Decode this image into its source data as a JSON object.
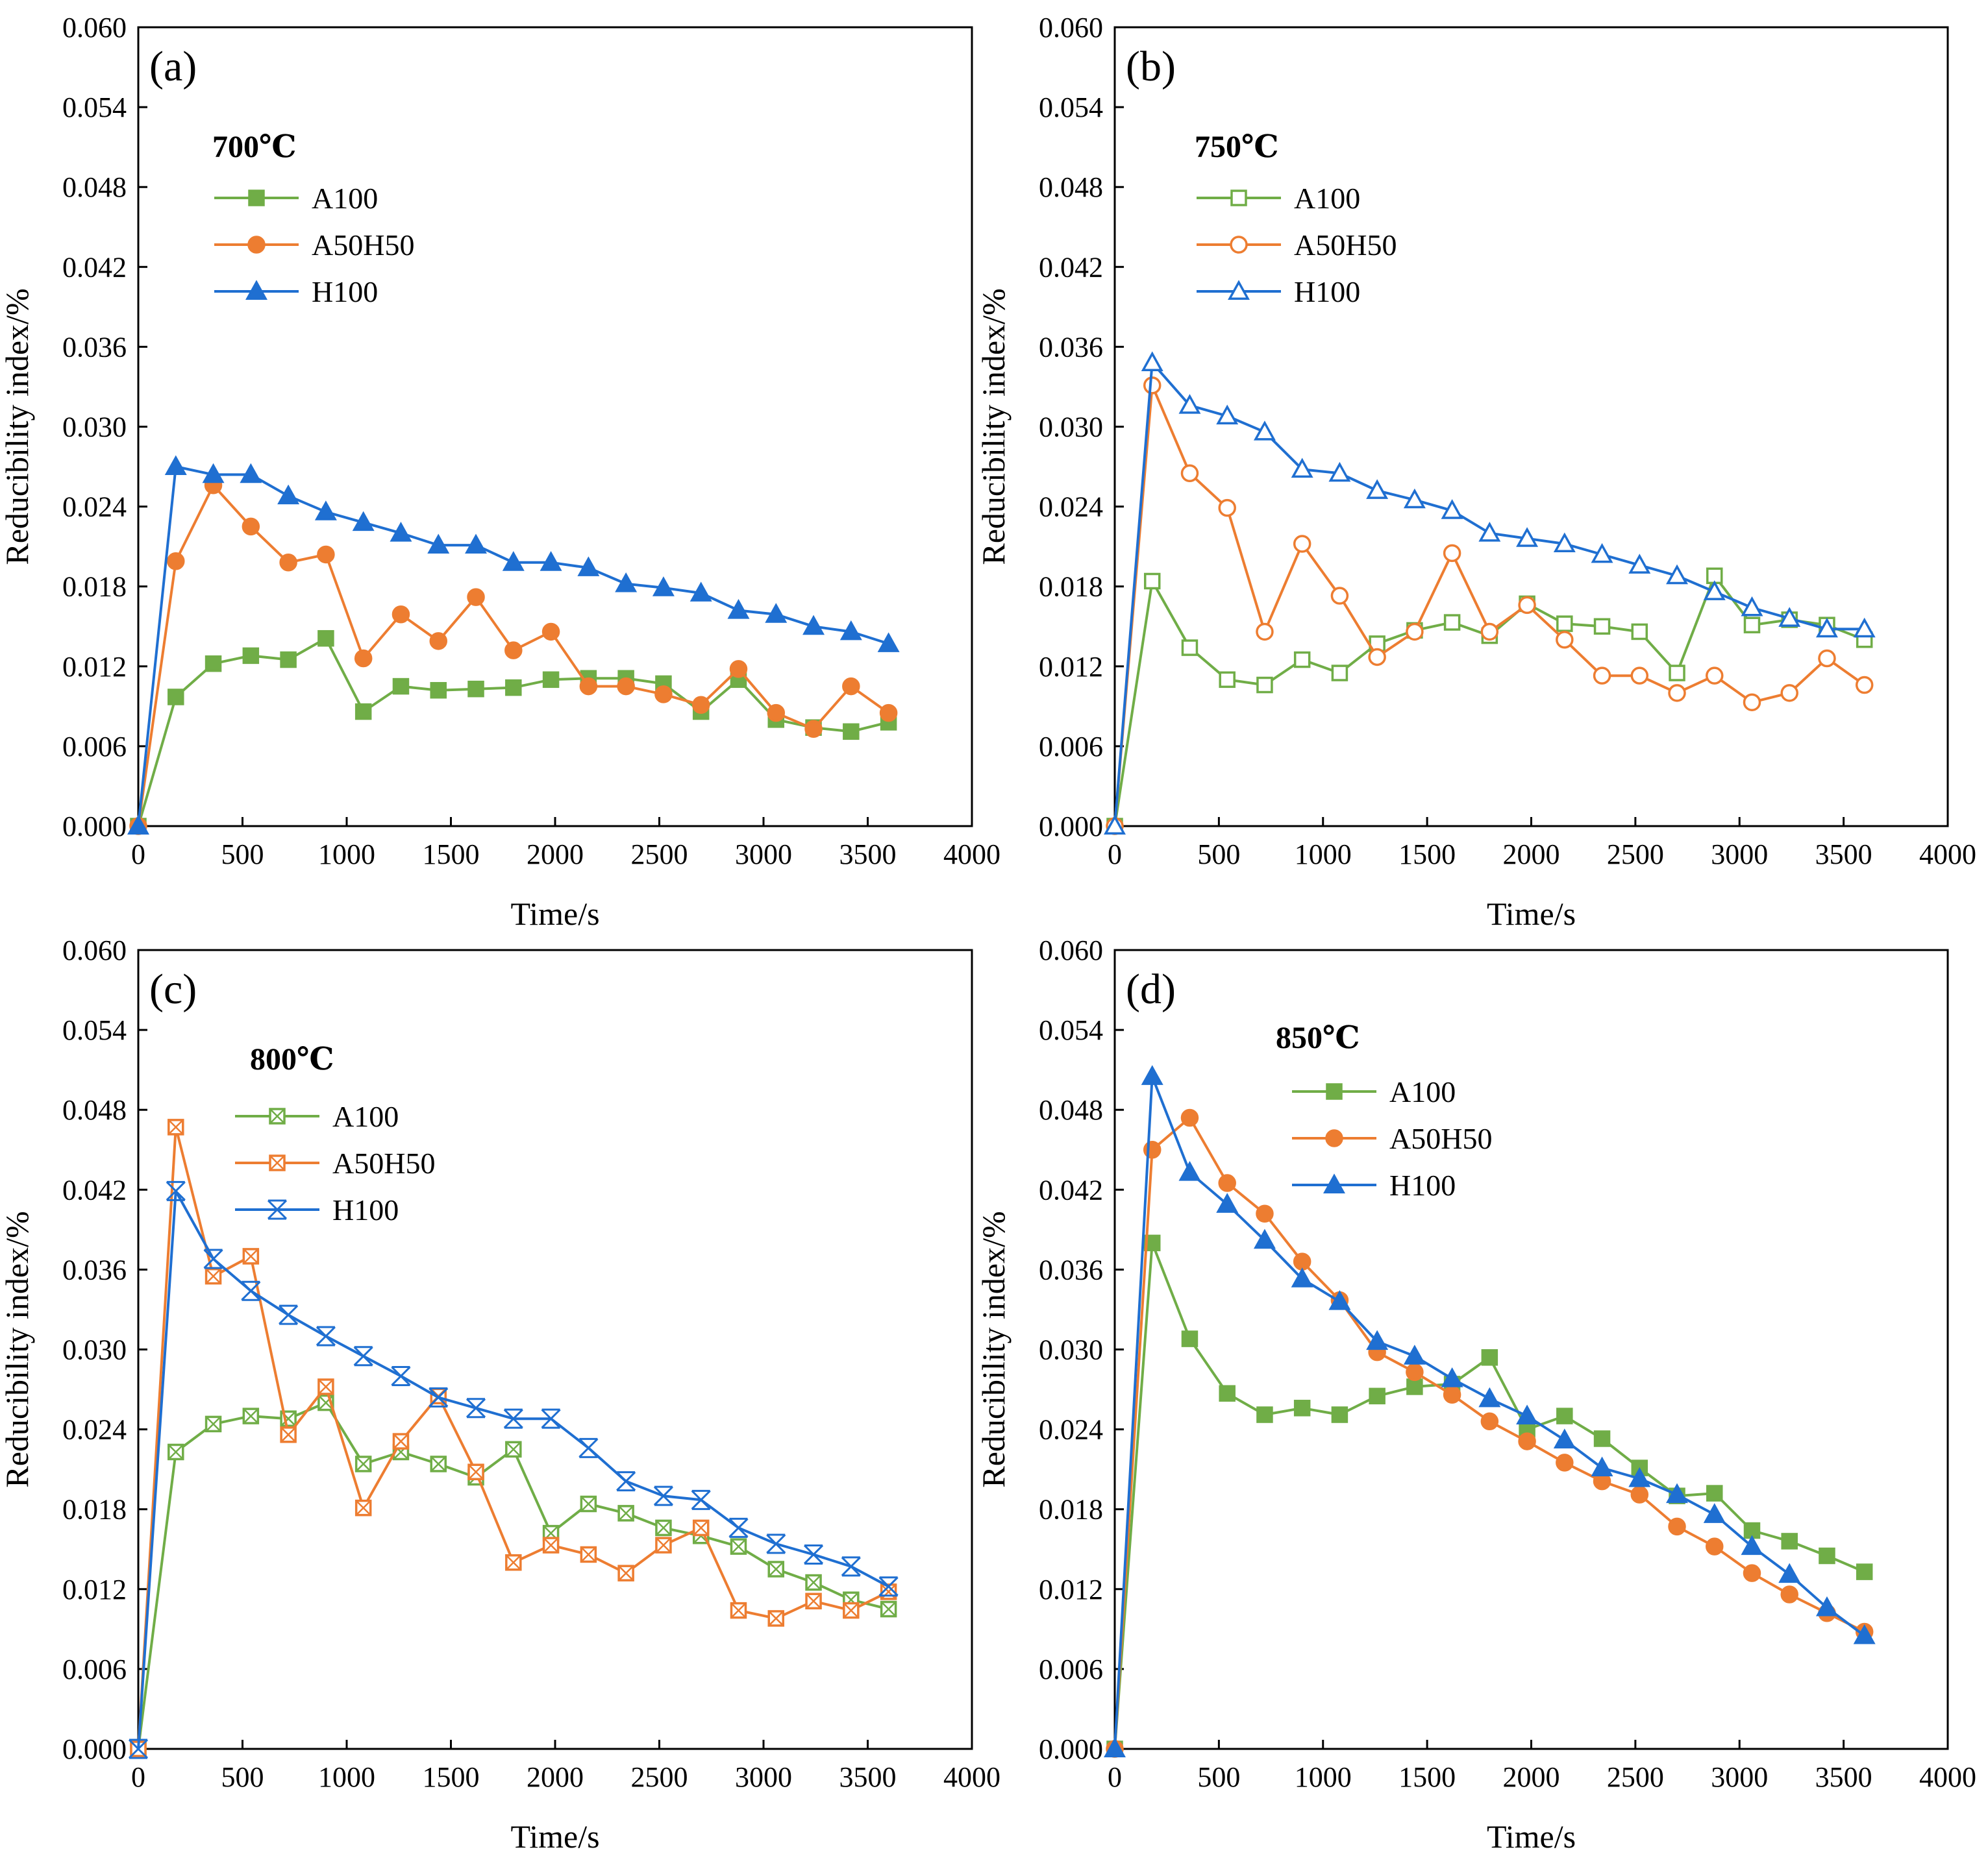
{
  "chart_data": [
    {
      "type": "line",
      "panel_label": "(a)",
      "temperature_label": "700℃",
      "xlabel": "Time/s",
      "ylabel": "Reducibility index/%",
      "xlim": [
        0,
        4000
      ],
      "ylim": [
        0,
        0.06
      ],
      "xticks": [
        "0",
        "500",
        "1000",
        "1500",
        "2000",
        "2500",
        "3000",
        "3500",
        "4000"
      ],
      "yticks": [
        "0.000",
        "0.006",
        "0.012",
        "0.018",
        "0.024",
        "0.030",
        "0.036",
        "0.042",
        "0.048",
        "0.054",
        "0.060"
      ],
      "marker_style": "filled",
      "x": [
        0,
        180,
        360,
        540,
        720,
        900,
        1080,
        1260,
        1440,
        1620,
        1800,
        1980,
        2160,
        2340,
        2520,
        2700,
        2880,
        3060,
        3240,
        3420,
        3600
      ],
      "series": [
        {
          "name": "A100",
          "color": "#70ad47",
          "marker": "square",
          "values": [
            0.0,
            0.0097,
            0.0122,
            0.0128,
            0.0125,
            0.0141,
            0.0086,
            0.0105,
            0.0102,
            0.0103,
            0.0104,
            0.011,
            0.0111,
            0.0111,
            0.0107,
            0.0086,
            0.011,
            0.008,
            0.0074,
            0.0071,
            0.0078
          ]
        },
        {
          "name": "A50H50",
          "color": "#ed7d31",
          "marker": "circle",
          "values": [
            0.0,
            0.0199,
            0.0256,
            0.0225,
            0.0198,
            0.0204,
            0.0126,
            0.0159,
            0.0139,
            0.0172,
            0.0132,
            0.0146,
            0.0105,
            0.0105,
            0.0099,
            0.0091,
            0.0118,
            0.0085,
            0.0073,
            0.0105,
            0.0085
          ]
        },
        {
          "name": "H100",
          "color": "#1f6fd1",
          "marker": "triangle",
          "values": [
            0.0,
            0.027,
            0.0264,
            0.0264,
            0.0248,
            0.0236,
            0.0228,
            0.022,
            0.0211,
            0.0211,
            0.0198,
            0.0198,
            0.0194,
            0.0182,
            0.0179,
            0.0175,
            0.0162,
            0.0159,
            0.015,
            0.0146,
            0.0137
          ]
        }
      ]
    },
    {
      "type": "line",
      "panel_label": "(b)",
      "temperature_label": "750℃",
      "xlabel": "Time/s",
      "ylabel": "Reducibility index/%",
      "xlim": [
        0,
        4000
      ],
      "ylim": [
        0,
        0.06
      ],
      "xticks": [
        "0",
        "500",
        "1000",
        "1500",
        "2000",
        "2500",
        "3000",
        "3500",
        "4000"
      ],
      "yticks": [
        "0.000",
        "0.006",
        "0.012",
        "0.018",
        "0.024",
        "0.030",
        "0.036",
        "0.042",
        "0.048",
        "0.054",
        "0.060"
      ],
      "marker_style": "hollow",
      "x": [
        0,
        180,
        360,
        540,
        720,
        900,
        1080,
        1260,
        1440,
        1620,
        1800,
        1980,
        2160,
        2340,
        2520,
        2700,
        2880,
        3060,
        3240,
        3420,
        3600
      ],
      "series": [
        {
          "name": "A100",
          "color": "#70ad47",
          "marker": "square",
          "values": [
            0.0,
            0.0184,
            0.0134,
            0.011,
            0.0106,
            0.0125,
            0.0115,
            0.0137,
            0.0147,
            0.0153,
            0.0143,
            0.0167,
            0.0152,
            0.015,
            0.0146,
            0.0115,
            0.0188,
            0.0151,
            0.0155,
            0.0151,
            0.014
          ]
        },
        {
          "name": "A50H50",
          "color": "#ed7d31",
          "marker": "circle",
          "values": [
            0.0,
            0.0331,
            0.0265,
            0.0239,
            0.0146,
            0.0212,
            0.0173,
            0.0127,
            0.0146,
            0.0205,
            0.0146,
            0.0166,
            0.014,
            0.0113,
            0.0113,
            0.01,
            0.0113,
            0.0093,
            0.01,
            0.0126,
            0.0106
          ]
        },
        {
          "name": "H100",
          "color": "#1f6fd1",
          "marker": "triangle",
          "values": [
            0.0,
            0.0348,
            0.0316,
            0.0308,
            0.0296,
            0.0268,
            0.0265,
            0.0252,
            0.0245,
            0.0237,
            0.022,
            0.0216,
            0.0212,
            0.0204,
            0.0196,
            0.0188,
            0.0176,
            0.0164,
            0.0156,
            0.0148,
            0.0148
          ]
        }
      ]
    },
    {
      "type": "line",
      "panel_label": "(c)",
      "temperature_label": "800℃",
      "xlabel": "Time/s",
      "ylabel": "Reducibility index/%",
      "xlim": [
        0,
        4000
      ],
      "ylim": [
        0,
        0.06
      ],
      "xticks": [
        "0",
        "500",
        "1000",
        "1500",
        "2000",
        "2500",
        "3000",
        "3500",
        "4000"
      ],
      "yticks": [
        "0.000",
        "0.006",
        "0.012",
        "0.018",
        "0.024",
        "0.030",
        "0.036",
        "0.042",
        "0.048",
        "0.054",
        "0.060"
      ],
      "marker_style": "crossed",
      "x": [
        0,
        180,
        360,
        540,
        720,
        900,
        1080,
        1260,
        1440,
        1620,
        1800,
        1980,
        2160,
        2340,
        2520,
        2700,
        2880,
        3060,
        3240,
        3420,
        3600
      ],
      "series": [
        {
          "name": "A100",
          "color": "#70ad47",
          "marker": "square",
          "values": [
            0.0,
            0.0223,
            0.0244,
            0.025,
            0.0248,
            0.026,
            0.0214,
            0.0223,
            0.0214,
            0.0204,
            0.0225,
            0.0162,
            0.0184,
            0.0177,
            0.0166,
            0.016,
            0.0152,
            0.0135,
            0.0125,
            0.0112,
            0.0105
          ]
        },
        {
          "name": "A50H50",
          "color": "#ed7d31",
          "marker": "circle",
          "values": [
            0.0,
            0.0467,
            0.0355,
            0.037,
            0.0236,
            0.0272,
            0.0181,
            0.0231,
            0.0265,
            0.0208,
            0.014,
            0.0153,
            0.0146,
            0.0132,
            0.0153,
            0.0166,
            0.0104,
            0.0098,
            0.0111,
            0.0104,
            0.0118
          ]
        },
        {
          "name": "H100",
          "color": "#1f6fd1",
          "marker": "star",
          "values": [
            0.0,
            0.0419,
            0.0368,
            0.0344,
            0.0326,
            0.031,
            0.0295,
            0.028,
            0.0264,
            0.0256,
            0.0248,
            0.0248,
            0.0226,
            0.0201,
            0.019,
            0.0187,
            0.0166,
            0.0154,
            0.0146,
            0.0137,
            0.0122
          ]
        }
      ]
    },
    {
      "type": "line",
      "panel_label": "(d)",
      "temperature_label": "850℃",
      "xlabel": "Time/s",
      "ylabel": "Reducibility index/%",
      "xlim": [
        0,
        4000
      ],
      "ylim": [
        0,
        0.06
      ],
      "xticks": [
        "0",
        "500",
        "1000",
        "1500",
        "2000",
        "2500",
        "3000",
        "3500",
        "4000"
      ],
      "yticks": [
        "0.000",
        "0.006",
        "0.012",
        "0.018",
        "0.024",
        "0.030",
        "0.036",
        "0.042",
        "0.048",
        "0.054",
        "0.060"
      ],
      "marker_style": "filled",
      "x": [
        0,
        180,
        360,
        540,
        720,
        900,
        1080,
        1260,
        1440,
        1620,
        1800,
        1980,
        2160,
        2340,
        2520,
        2700,
        2880,
        3060,
        3240,
        3420,
        3600
      ],
      "series": [
        {
          "name": "A100",
          "color": "#70ad47",
          "marker": "square",
          "values": [
            0.0,
            0.038,
            0.0308,
            0.0267,
            0.0251,
            0.0256,
            0.0251,
            0.0265,
            0.0272,
            0.0274,
            0.0294,
            0.024,
            0.025,
            0.0233,
            0.0211,
            0.019,
            0.0192,
            0.0164,
            0.0156,
            0.0145,
            0.0133
          ]
        },
        {
          "name": "A50H50",
          "color": "#ed7d31",
          "marker": "circle",
          "values": [
            0.0,
            0.045,
            0.0474,
            0.0425,
            0.0402,
            0.0366,
            0.0337,
            0.0298,
            0.0283,
            0.0266,
            0.0246,
            0.0231,
            0.0215,
            0.0201,
            0.0191,
            0.0167,
            0.0152,
            0.0132,
            0.0116,
            0.0102,
            0.0088
          ]
        },
        {
          "name": "H100",
          "color": "#1f6fd1",
          "marker": "triangle",
          "values": [
            0.0,
            0.0505,
            0.0433,
            0.0409,
            0.0382,
            0.0353,
            0.0336,
            0.0306,
            0.0295,
            0.0278,
            0.0263,
            0.025,
            0.0232,
            0.0211,
            0.0203,
            0.0191,
            0.0176,
            0.0152,
            0.0131,
            0.0106,
            0.0085
          ]
        }
      ]
    }
  ]
}
